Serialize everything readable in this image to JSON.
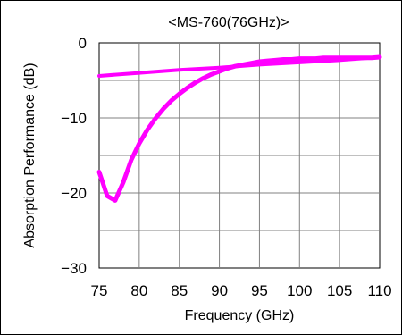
{
  "chart_data": {
    "type": "line",
    "title": "<MS-760(76GHz)>",
    "xlabel": "Frequency (GHz)",
    "ylabel": "Absorption Performance (dB)",
    "xlim": [
      75,
      110
    ],
    "ylim": [
      -30,
      0
    ],
    "x_ticks": [
      "75",
      "80",
      "85",
      "90",
      "95",
      "100",
      "105",
      "110"
    ],
    "y_ticks": [
      "0",
      "−10",
      "−20",
      "−30"
    ],
    "x_tick_values": [
      75,
      80,
      85,
      90,
      95,
      100,
      105,
      110
    ],
    "y_tick_values": [
      0,
      -10,
      -20,
      -30
    ],
    "grid": true,
    "line_color": "#ff00ff",
    "series": [
      {
        "x": [
          75,
          76,
          77,
          78,
          79,
          80,
          81,
          82,
          83,
          84,
          85,
          86,
          87,
          88,
          89,
          90,
          91,
          92,
          93,
          94,
          95,
          96,
          97,
          98,
          99,
          100,
          101,
          102,
          103,
          104,
          105,
          106,
          107,
          108,
          109,
          110
        ],
        "values": [
          -17.2,
          -20.4,
          -21.0,
          -18.6,
          -15.6,
          -13.4,
          -11.6,
          -10.1,
          -8.8,
          -7.7,
          -6.8,
          -6.0,
          -5.3,
          -4.7,
          -4.2,
          -3.8,
          -3.4,
          -3.1,
          -2.9,
          -2.7,
          -2.5,
          -2.4,
          -2.3,
          -2.2,
          -2.2,
          -2.1,
          -2.1,
          -2.1,
          -2.0,
          -2.0,
          -2.0,
          -2.0,
          -2.0,
          -2.0,
          -2.0,
          -1.9
        ]
      },
      {
        "x": [
          75,
          80,
          85,
          90,
          95,
          100,
          105,
          110
        ],
        "values": [
          -4.4,
          -4.0,
          -3.6,
          -3.3,
          -2.9,
          -2.6,
          -2.3,
          -1.9
        ]
      }
    ]
  }
}
